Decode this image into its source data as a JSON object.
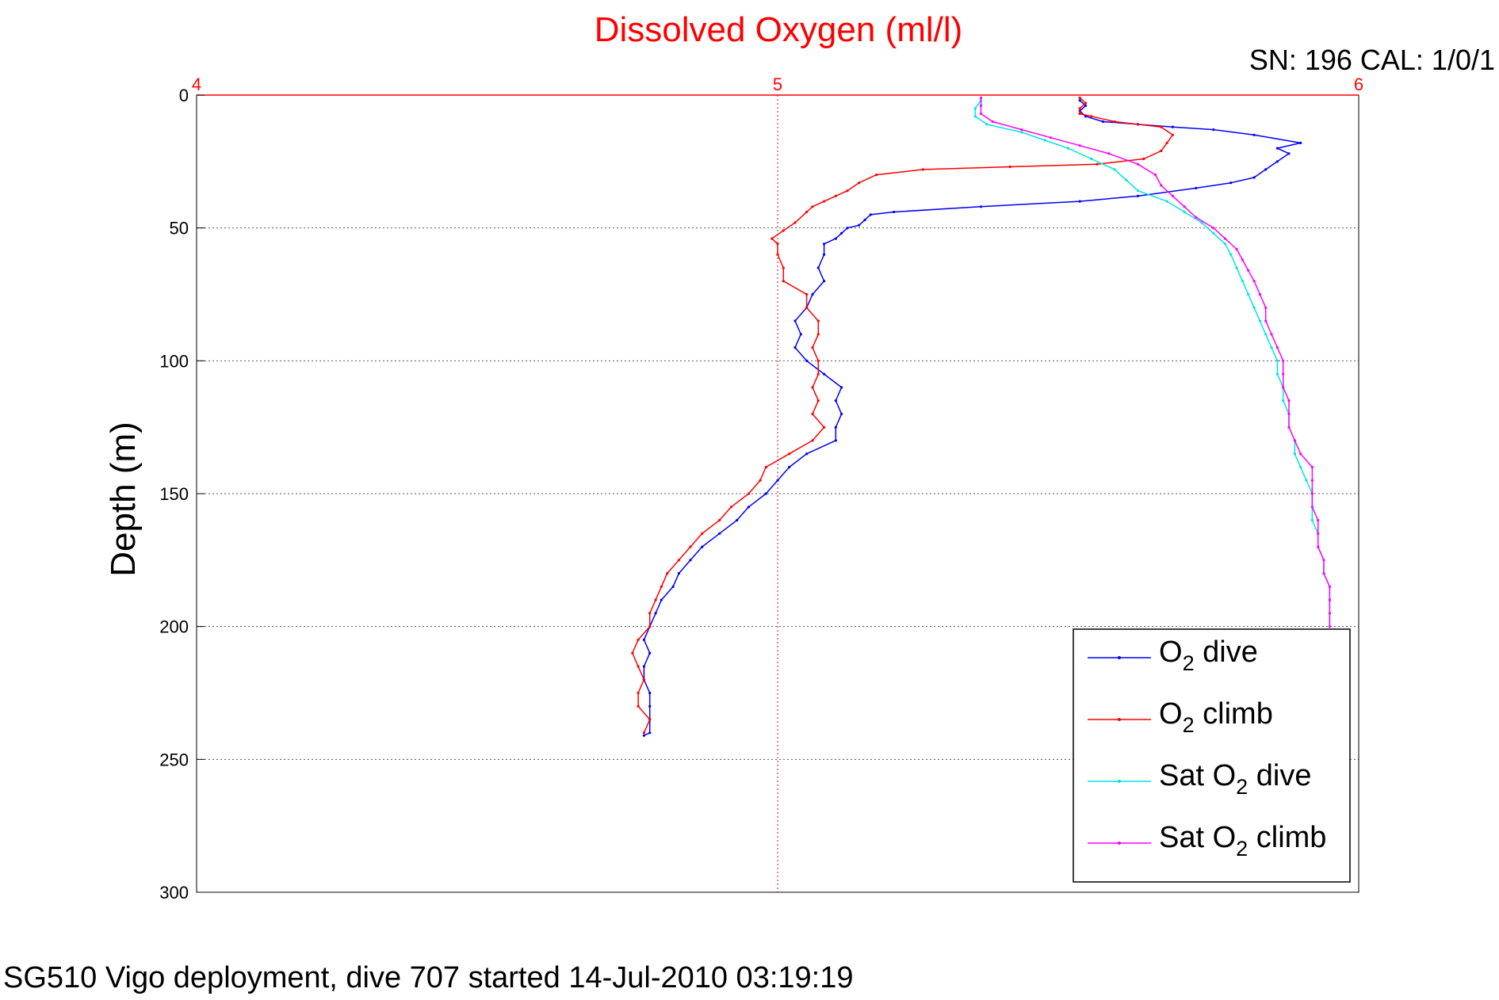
{
  "chart_data": {
    "type": "line",
    "title": "Dissolved Oxygen (ml/l)",
    "corner_label": "SN: 196  CAL: 1/0/1",
    "footer": "SG510 Vigo deployment, dive 707 started 14-Jul-2010 03:19:19",
    "ylabel": "Depth (m)",
    "xlim": [
      4,
      6
    ],
    "ylim": [
      0,
      300
    ],
    "y_inverted": true,
    "x_axis_position": "top",
    "grid": true,
    "x_ticks": [
      "4",
      "5",
      "6"
    ],
    "y_ticks": [
      "0",
      "50",
      "100",
      "150",
      "200",
      "250",
      "300"
    ],
    "legend_position": "bottom-right",
    "series": [
      {
        "name": "O2 dive",
        "legend_main": "O",
        "legend_sub": "2",
        "legend_rest": " dive",
        "color": "#0000ff",
        "points": [
          [
            5.52,
            2
          ],
          [
            5.53,
            4
          ],
          [
            5.52,
            6
          ],
          [
            5.53,
            8
          ],
          [
            5.56,
            10
          ],
          [
            5.62,
            11
          ],
          [
            5.68,
            12
          ],
          [
            5.75,
            13
          ],
          [
            5.82,
            15
          ],
          [
            5.9,
            18
          ],
          [
            5.86,
            20
          ],
          [
            5.88,
            22
          ],
          [
            5.86,
            25
          ],
          [
            5.84,
            28
          ],
          [
            5.82,
            31
          ],
          [
            5.78,
            33
          ],
          [
            5.72,
            35
          ],
          [
            5.62,
            38
          ],
          [
            5.52,
            40
          ],
          [
            5.35,
            42
          ],
          [
            5.2,
            44
          ],
          [
            5.16,
            45
          ],
          [
            5.15,
            47
          ],
          [
            5.14,
            49
          ],
          [
            5.12,
            50
          ],
          [
            5.11,
            52
          ],
          [
            5.1,
            54
          ],
          [
            5.08,
            56
          ],
          [
            5.08,
            60
          ],
          [
            5.07,
            65
          ],
          [
            5.08,
            70
          ],
          [
            5.06,
            75
          ],
          [
            5.05,
            80
          ],
          [
            5.03,
            85
          ],
          [
            5.04,
            90
          ],
          [
            5.03,
            95
          ],
          [
            5.05,
            100
          ],
          [
            5.08,
            105
          ],
          [
            5.11,
            110
          ],
          [
            5.1,
            115
          ],
          [
            5.11,
            120
          ],
          [
            5.1,
            125
          ],
          [
            5.1,
            130
          ],
          [
            5.05,
            135
          ],
          [
            5.02,
            140
          ],
          [
            5.0,
            145
          ],
          [
            4.98,
            150
          ],
          [
            4.95,
            155
          ],
          [
            4.93,
            160
          ],
          [
            4.9,
            165
          ],
          [
            4.87,
            170
          ],
          [
            4.85,
            175
          ],
          [
            4.83,
            180
          ],
          [
            4.82,
            185
          ],
          [
            4.8,
            190
          ],
          [
            4.79,
            195
          ],
          [
            4.78,
            200
          ],
          [
            4.77,
            205
          ],
          [
            4.78,
            210
          ],
          [
            4.77,
            215
          ],
          [
            4.77,
            220
          ],
          [
            4.78,
            225
          ],
          [
            4.78,
            230
          ],
          [
            4.78,
            235
          ],
          [
            4.78,
            240
          ],
          [
            4.77,
            241
          ]
        ]
      },
      {
        "name": "O2 climb",
        "legend_main": "O",
        "legend_sub": "2",
        "legend_rest": " climb",
        "color": "#ff0000",
        "points": [
          [
            5.52,
            1
          ],
          [
            5.53,
            3
          ],
          [
            5.52,
            5
          ],
          [
            5.52,
            7
          ],
          [
            5.54,
            8
          ],
          [
            5.58,
            10
          ],
          [
            5.66,
            12
          ],
          [
            5.68,
            15
          ],
          [
            5.67,
            18
          ],
          [
            5.66,
            21
          ],
          [
            5.63,
            24
          ],
          [
            5.55,
            26
          ],
          [
            5.4,
            27
          ],
          [
            5.25,
            28
          ],
          [
            5.17,
            30
          ],
          [
            5.14,
            33
          ],
          [
            5.12,
            36
          ],
          [
            5.1,
            38
          ],
          [
            5.08,
            40
          ],
          [
            5.06,
            42
          ],
          [
            5.05,
            44
          ],
          [
            5.03,
            48
          ],
          [
            5.01,
            51
          ],
          [
            4.99,
            54
          ],
          [
            5.0,
            56
          ],
          [
            5.0,
            60
          ],
          [
            5.01,
            65
          ],
          [
            5.01,
            70
          ],
          [
            5.05,
            75
          ],
          [
            5.05,
            80
          ],
          [
            5.07,
            85
          ],
          [
            5.07,
            90
          ],
          [
            5.06,
            95
          ],
          [
            5.07,
            100
          ],
          [
            5.07,
            105
          ],
          [
            5.06,
            110
          ],
          [
            5.07,
            115
          ],
          [
            5.06,
            120
          ],
          [
            5.08,
            125
          ],
          [
            5.06,
            130
          ],
          [
            5.02,
            135
          ],
          [
            4.98,
            140
          ],
          [
            4.97,
            145
          ],
          [
            4.95,
            150
          ],
          [
            4.92,
            155
          ],
          [
            4.9,
            160
          ],
          [
            4.87,
            165
          ],
          [
            4.85,
            170
          ],
          [
            4.83,
            175
          ],
          [
            4.81,
            180
          ],
          [
            4.8,
            185
          ],
          [
            4.79,
            190
          ],
          [
            4.78,
            195
          ],
          [
            4.78,
            200
          ],
          [
            4.76,
            205
          ],
          [
            4.75,
            210
          ],
          [
            4.76,
            215
          ],
          [
            4.77,
            220
          ],
          [
            4.76,
            225
          ],
          [
            4.76,
            230
          ],
          [
            4.78,
            235
          ],
          [
            4.77,
            240
          ]
        ]
      },
      {
        "name": "Sat O2 dive",
        "legend_main": "Sat O",
        "legend_sub": "2",
        "legend_rest": " dive",
        "color": "#00e5e5",
        "points": [
          [
            5.35,
            2
          ],
          [
            5.34,
            5
          ],
          [
            5.34,
            8
          ],
          [
            5.36,
            11
          ],
          [
            5.42,
            14
          ],
          [
            5.46,
            17
          ],
          [
            5.5,
            20
          ],
          [
            5.54,
            24
          ],
          [
            5.58,
            28
          ],
          [
            5.6,
            32
          ],
          [
            5.62,
            36
          ],
          [
            5.67,
            40
          ],
          [
            5.7,
            44
          ],
          [
            5.73,
            48
          ],
          [
            5.75,
            52
          ],
          [
            5.77,
            56
          ],
          [
            5.78,
            60
          ],
          [
            5.79,
            65
          ],
          [
            5.8,
            70
          ],
          [
            5.81,
            75
          ],
          [
            5.82,
            80
          ],
          [
            5.83,
            85
          ],
          [
            5.84,
            90
          ],
          [
            5.85,
            95
          ],
          [
            5.86,
            100
          ],
          [
            5.86,
            105
          ],
          [
            5.87,
            110
          ],
          [
            5.87,
            115
          ],
          [
            5.88,
            120
          ],
          [
            5.88,
            125
          ],
          [
            5.89,
            130
          ],
          [
            5.89,
            135
          ],
          [
            5.9,
            140
          ],
          [
            5.91,
            145
          ],
          [
            5.92,
            150
          ],
          [
            5.92,
            155
          ],
          [
            5.92,
            160
          ],
          [
            5.93,
            165
          ],
          [
            5.93,
            170
          ],
          [
            5.94,
            175
          ],
          [
            5.94,
            180
          ],
          [
            5.95,
            185
          ],
          [
            5.95,
            190
          ],
          [
            5.95,
            195
          ],
          [
            5.95,
            200
          ]
        ]
      },
      {
        "name": "Sat O2 climb",
        "legend_main": "Sat O",
        "legend_sub": "2",
        "legend_rest": " climb",
        "color": "#ff00ff",
        "points": [
          [
            5.35,
            1
          ],
          [
            5.35,
            4
          ],
          [
            5.35,
            7
          ],
          [
            5.37,
            10
          ],
          [
            5.42,
            13
          ],
          [
            5.47,
            16
          ],
          [
            5.52,
            19
          ],
          [
            5.57,
            22
          ],
          [
            5.62,
            26
          ],
          [
            5.65,
            30
          ],
          [
            5.66,
            34
          ],
          [
            5.68,
            38
          ],
          [
            5.7,
            42
          ],
          [
            5.72,
            46
          ],
          [
            5.75,
            50
          ],
          [
            5.77,
            54
          ],
          [
            5.79,
            58
          ],
          [
            5.8,
            62
          ],
          [
            5.81,
            66
          ],
          [
            5.82,
            70
          ],
          [
            5.83,
            75
          ],
          [
            5.84,
            80
          ],
          [
            5.84,
            85
          ],
          [
            5.85,
            90
          ],
          [
            5.86,
            95
          ],
          [
            5.87,
            100
          ],
          [
            5.87,
            105
          ],
          [
            5.87,
            110
          ],
          [
            5.88,
            115
          ],
          [
            5.88,
            120
          ],
          [
            5.88,
            125
          ],
          [
            5.89,
            130
          ],
          [
            5.9,
            135
          ],
          [
            5.92,
            140
          ],
          [
            5.92,
            145
          ],
          [
            5.92,
            150
          ],
          [
            5.92,
            155
          ],
          [
            5.93,
            160
          ],
          [
            5.93,
            165
          ],
          [
            5.93,
            170
          ],
          [
            5.94,
            175
          ],
          [
            5.94,
            180
          ],
          [
            5.95,
            185
          ],
          [
            5.95,
            190
          ],
          [
            5.95,
            195
          ],
          [
            5.95,
            200
          ]
        ]
      }
    ]
  }
}
